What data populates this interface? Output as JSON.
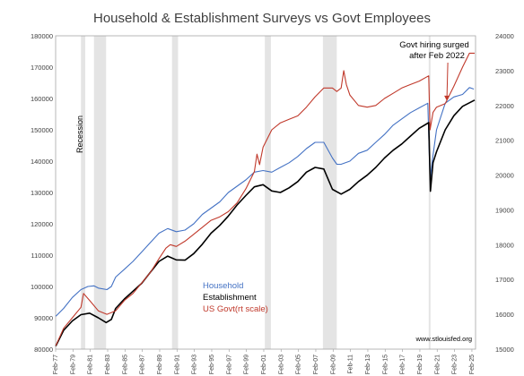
{
  "chart_data": {
    "type": "line",
    "title": "Household & Establishment Surveys vs Govt Employees",
    "y_left": {
      "min": 80000,
      "max": 180000,
      "step": 10000
    },
    "y_right": {
      "min": 15000,
      "max": 24000,
      "step": 1000
    },
    "x_range": [
      1977.08,
      2025.5
    ],
    "x_ticks": [
      "Feb-77",
      "Feb-79",
      "Feb-81",
      "Feb-83",
      "Feb-85",
      "Feb-87",
      "Feb-89",
      "Feb-91",
      "Feb-93",
      "Feb-95",
      "Feb-97",
      "Feb-99",
      "Feb-01",
      "Feb-03",
      "Feb-05",
      "Feb-07",
      "Feb-09",
      "Feb-11",
      "Feb-13",
      "Feb-15",
      "Feb-17",
      "Feb-19",
      "Feb-21",
      "Feb-23",
      "Feb-25"
    ],
    "y_left_ticks": [
      "80000",
      "90000",
      "100000",
      "110000",
      "120000",
      "130000",
      "140000",
      "150000",
      "160000",
      "170000",
      "180000"
    ],
    "y_right_ticks": [
      "15000",
      "16000",
      "17000",
      "18000",
      "19000",
      "20000",
      "21000",
      "22000",
      "23000",
      "24000"
    ],
    "recessions": [
      [
        1980.0,
        1980.5
      ],
      [
        1981.5,
        1982.9
      ],
      [
        1990.5,
        1991.2
      ],
      [
        2001.2,
        2001.9
      ],
      [
        2007.9,
        2009.5
      ],
      [
        2020.1,
        2020.3
      ]
    ],
    "recession_label": "Recession",
    "series": [
      {
        "name": "Household",
        "axis": "left",
        "color": "#4472C4",
        "points": [
          [
            1977.1,
            90500
          ],
          [
            1978,
            93000
          ],
          [
            1979,
            96500
          ],
          [
            1980,
            99000
          ],
          [
            1980.8,
            100000
          ],
          [
            1981.5,
            100200
          ],
          [
            1982,
            99500
          ],
          [
            1983,
            99000
          ],
          [
            1983.5,
            100000
          ],
          [
            1984,
            103000
          ],
          [
            1985,
            105500
          ],
          [
            1986,
            108000
          ],
          [
            1987,
            111000
          ],
          [
            1988,
            114000
          ],
          [
            1989,
            117000
          ],
          [
            1990,
            118500
          ],
          [
            1991,
            117500
          ],
          [
            1992,
            118000
          ],
          [
            1993,
            120000
          ],
          [
            1994,
            123000
          ],
          [
            1995,
            125000
          ],
          [
            1996,
            127000
          ],
          [
            1997,
            130000
          ],
          [
            1998,
            132000
          ],
          [
            1999,
            134000
          ],
          [
            2000,
            136500
          ],
          [
            2001,
            137000
          ],
          [
            2002,
            136500
          ],
          [
            2003,
            138000
          ],
          [
            2004,
            139500
          ],
          [
            2005,
            141500
          ],
          [
            2006,
            144000
          ],
          [
            2007,
            146000
          ],
          [
            2008,
            146000
          ],
          [
            2009,
            141000
          ],
          [
            2009.5,
            139000
          ],
          [
            2010,
            139000
          ],
          [
            2011,
            140000
          ],
          [
            2012,
            142500
          ],
          [
            2013,
            143500
          ],
          [
            2014,
            146000
          ],
          [
            2015,
            148500
          ],
          [
            2016,
            151500
          ],
          [
            2017,
            153500
          ],
          [
            2018,
            155500
          ],
          [
            2019,
            157000
          ],
          [
            2020.0,
            158500
          ],
          [
            2020.25,
            134000
          ],
          [
            2020.5,
            140000
          ],
          [
            2021,
            150000
          ],
          [
            2022,
            158500
          ],
          [
            2023,
            160500
          ],
          [
            2024,
            161300
          ],
          [
            2024.8,
            163500
          ],
          [
            2025.3,
            163000
          ]
        ]
      },
      {
        "name": "Establishment",
        "axis": "left",
        "color": "#000000",
        "points": [
          [
            1977.1,
            81000
          ],
          [
            1978,
            86000
          ],
          [
            1979,
            89000
          ],
          [
            1980,
            91000
          ],
          [
            1981,
            91500
          ],
          [
            1982,
            90000
          ],
          [
            1982.9,
            88500
          ],
          [
            1983.5,
            89500
          ],
          [
            1984,
            93000
          ],
          [
            1985,
            96000
          ],
          [
            1986,
            98500
          ],
          [
            1987,
            101000
          ],
          [
            1988,
            104500
          ],
          [
            1989,
            108000
          ],
          [
            1990,
            109700
          ],
          [
            1991,
            108500
          ],
          [
            1992,
            108400
          ],
          [
            1993,
            110500
          ],
          [
            1994,
            113500
          ],
          [
            1995,
            117000
          ],
          [
            1996,
            119500
          ],
          [
            1997,
            122500
          ],
          [
            1998,
            126000
          ],
          [
            1999,
            129000
          ],
          [
            2000,
            131800
          ],
          [
            2001,
            132500
          ],
          [
            2002,
            130500
          ],
          [
            2003,
            130000
          ],
          [
            2004,
            131500
          ],
          [
            2005,
            133500
          ],
          [
            2006,
            136500
          ],
          [
            2007,
            138000
          ],
          [
            2008,
            137500
          ],
          [
            2009,
            131000
          ],
          [
            2010,
            129500
          ],
          [
            2011,
            131000
          ],
          [
            2012,
            133500
          ],
          [
            2013,
            135500
          ],
          [
            2014,
            138000
          ],
          [
            2015,
            141000
          ],
          [
            2016,
            143500
          ],
          [
            2017,
            145500
          ],
          [
            2018,
            148000
          ],
          [
            2019,
            150500
          ],
          [
            2020.1,
            152300
          ],
          [
            2020.3,
            130400
          ],
          [
            2020.6,
            139500
          ],
          [
            2021,
            143000
          ],
          [
            2022,
            150000
          ],
          [
            2023,
            154500
          ],
          [
            2024,
            157500
          ],
          [
            2025.4,
            159500
          ]
        ]
      },
      {
        "name": "US Govt(rt scale)",
        "axis": "right",
        "color": "#C0392B",
        "points": [
          [
            1977.1,
            15100
          ],
          [
            1978,
            15600
          ],
          [
            1979,
            15900
          ],
          [
            1980,
            16200
          ],
          [
            1980.3,
            16600
          ],
          [
            1981,
            16400
          ],
          [
            1982,
            16100
          ],
          [
            1983,
            16000
          ],
          [
            1984,
            16100
          ],
          [
            1985,
            16400
          ],
          [
            1986,
            16600
          ],
          [
            1987,
            16900
          ],
          [
            1988,
            17200
          ],
          [
            1989,
            17600
          ],
          [
            1989.8,
            17900
          ],
          [
            1990.3,
            18000
          ],
          [
            1991,
            17950
          ],
          [
            1992,
            18100
          ],
          [
            1993,
            18300
          ],
          [
            1994,
            18500
          ],
          [
            1995,
            18700
          ],
          [
            1996,
            18800
          ],
          [
            1997,
            18950
          ],
          [
            1998,
            19200
          ],
          [
            1999,
            19600
          ],
          [
            2000,
            20100
          ],
          [
            2000.3,
            20600
          ],
          [
            2000.6,
            20300
          ],
          [
            2001,
            20800
          ],
          [
            2002,
            21300
          ],
          [
            2003,
            21500
          ],
          [
            2004,
            21600
          ],
          [
            2005,
            21700
          ],
          [
            2006,
            21950
          ],
          [
            2007,
            22250
          ],
          [
            2008,
            22500
          ],
          [
            2009,
            22500
          ],
          [
            2009.5,
            22400
          ],
          [
            2010,
            22500
          ],
          [
            2010.3,
            23000
          ],
          [
            2010.6,
            22600
          ],
          [
            2011,
            22300
          ],
          [
            2012,
            22000
          ],
          [
            2013,
            21950
          ],
          [
            2014,
            22000
          ],
          [
            2015,
            22200
          ],
          [
            2016,
            22350
          ],
          [
            2017,
            22500
          ],
          [
            2018,
            22600
          ],
          [
            2019,
            22700
          ],
          [
            2020.1,
            22850
          ],
          [
            2020.25,
            21300
          ],
          [
            2020.6,
            21800
          ],
          [
            2021,
            21950
          ],
          [
            2022,
            22050
          ],
          [
            2023,
            22550
          ],
          [
            2024,
            23100
          ],
          [
            2024.8,
            23500
          ],
          [
            2025.4,
            23500
          ]
        ]
      }
    ],
    "annotation": {
      "lines": [
        "Govt hiring surged",
        "after Feb 2022"
      ],
      "arrow_to": [
        2022.2,
        22100
      ]
    },
    "source": "www.stlouisfed.org"
  }
}
